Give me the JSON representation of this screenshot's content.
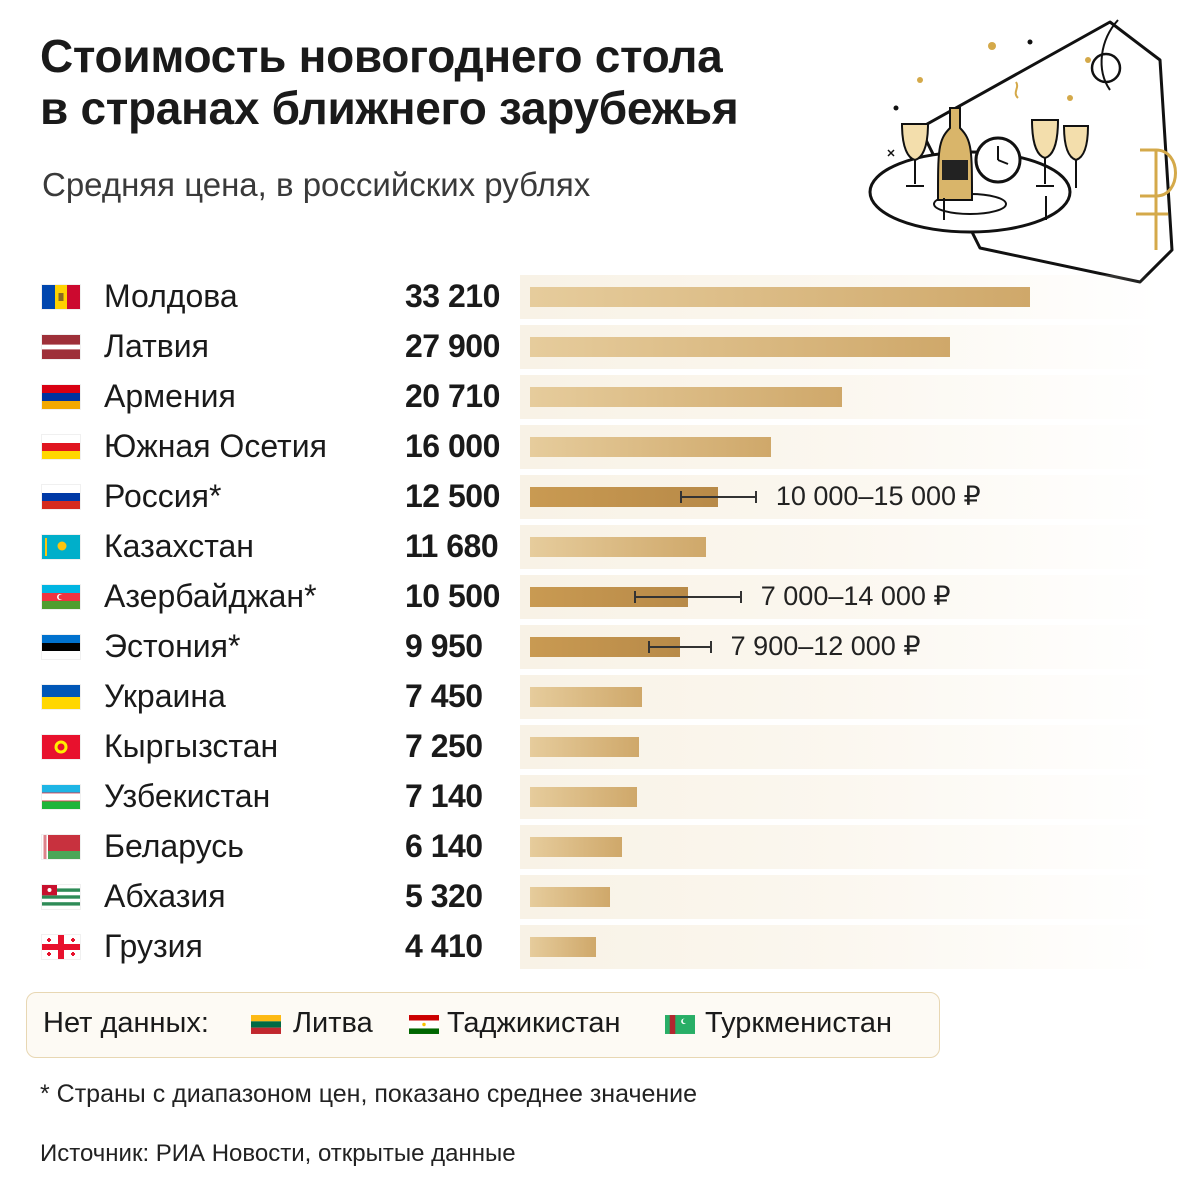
{
  "title_line1": "Стоимость новогоднего стола",
  "title_line2": "в странах ближнего зарубежья",
  "subtitle": "Средняя цена, в российских рублях",
  "colors": {
    "bar_light": "#e6cc9c",
    "bar_gold": "#cfa86a",
    "bar_dark": "#b88a48",
    "accent": "#d4a94a"
  },
  "chart_data": {
    "type": "bar",
    "orientation": "horizontal",
    "categories": [
      "Молдова",
      "Латвия",
      "Армения",
      "Южная Осетия",
      "Россия*",
      "Казахстан",
      "Азербайджан*",
      "Эстония*",
      "Украина",
      "Кыргызстан",
      "Узбекистан",
      "Беларусь",
      "Абхазия",
      "Грузия"
    ],
    "values": [
      33210,
      27900,
      20710,
      16000,
      12500,
      11680,
      10500,
      9950,
      7450,
      7250,
      7140,
      6140,
      5320,
      4410
    ],
    "value_labels": [
      "33 210",
      "27 900",
      "20 710",
      "16 000",
      "12 500",
      "11 680",
      "10 500",
      "9 950",
      "7 450",
      "7 250",
      "7 140",
      "6 140",
      "5 320",
      "4 410"
    ],
    "ranges": [
      {
        "index": 4,
        "low": 10000,
        "high": 15000,
        "label": "10 000–15 000 ₽"
      },
      {
        "index": 6,
        "low": 7000,
        "high": 14000,
        "label": "7 000–14 000 ₽"
      },
      {
        "index": 7,
        "low": 7900,
        "high": 12000,
        "label": "7 900–12 000 ₽"
      }
    ],
    "xlim": [
      0,
      33210
    ],
    "grid": false
  },
  "flags": [
    "moldova-flag-icon",
    "latvia-flag-icon",
    "armenia-flag-icon",
    "south-ossetia-flag-icon",
    "russia-flag-icon",
    "kazakhstan-flag-icon",
    "azerbaijan-flag-icon",
    "estonia-flag-icon",
    "ukraine-flag-icon",
    "kyrgyzstan-flag-icon",
    "uzbekistan-flag-icon",
    "belarus-flag-icon",
    "abkhazia-flag-icon",
    "georgia-flag-icon"
  ],
  "no_data": {
    "label": "Нет данных:",
    "countries": [
      "Литва",
      "Таджикистан",
      "Туркменистан"
    ]
  },
  "footnote": "* Страны с диапазоном цен, показано среднее значение",
  "source": "Источник: РИА Новости, открытые данные"
}
